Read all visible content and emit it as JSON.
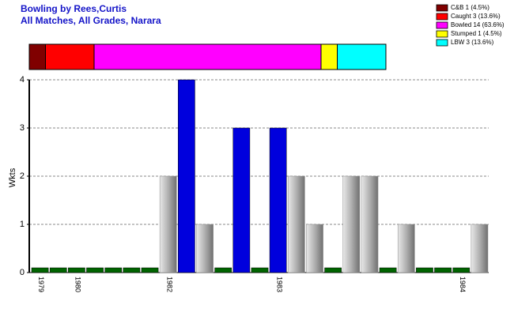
{
  "chart_data": {
    "type": "bar",
    "title": "Bowling by Rees,Curtis",
    "subtitle": "All Matches, All Grades, Narara",
    "y_label": "Wkts",
    "categories": [
      "1979",
      null,
      "1980",
      null,
      null,
      null,
      null,
      "1982",
      null,
      null,
      null,
      null,
      null,
      "1983",
      null,
      null,
      null,
      null,
      null,
      null,
      null,
      null,
      null,
      "1984",
      null
    ],
    "values": [
      0,
      0,
      0,
      0,
      0,
      0,
      0,
      2,
      4,
      1,
      0,
      3,
      0,
      3,
      2,
      1,
      0,
      2,
      2,
      0,
      1,
      0,
      0,
      0,
      1
    ],
    "colors": [
      "#006400",
      "#006400",
      "#006400",
      "#006400",
      "#006400",
      "#006400",
      "#006400",
      "gray",
      "#0000dd",
      "gray",
      "#006400",
      "#0000dd",
      "#006400",
      "#0000dd",
      "gray",
      "gray",
      "#006400",
      "gray",
      "gray",
      "#006400",
      "gray",
      "#006400",
      "#006400",
      "#006400",
      "gray"
    ],
    "ylim": [
      0,
      4
    ],
    "yticks": [
      0,
      1,
      2,
      3,
      4
    ],
    "grid": true,
    "dismissals": [
      {
        "name": "C&B 1 (4.5%)",
        "color": "#800000",
        "value": 1
      },
      {
        "name": "Caught 3 (13.6%)",
        "color": "#ff0000",
        "value": 3
      },
      {
        "name": "Bowled 14 (63.6%)",
        "color": "#ff00ff",
        "value": 14
      },
      {
        "name": "Stumped 1 (4.5%)",
        "color": "#ffff00",
        "value": 1
      },
      {
        "name": "LBW 3 (13.6%)",
        "color": "#00ffff",
        "value": 3
      }
    ]
  }
}
